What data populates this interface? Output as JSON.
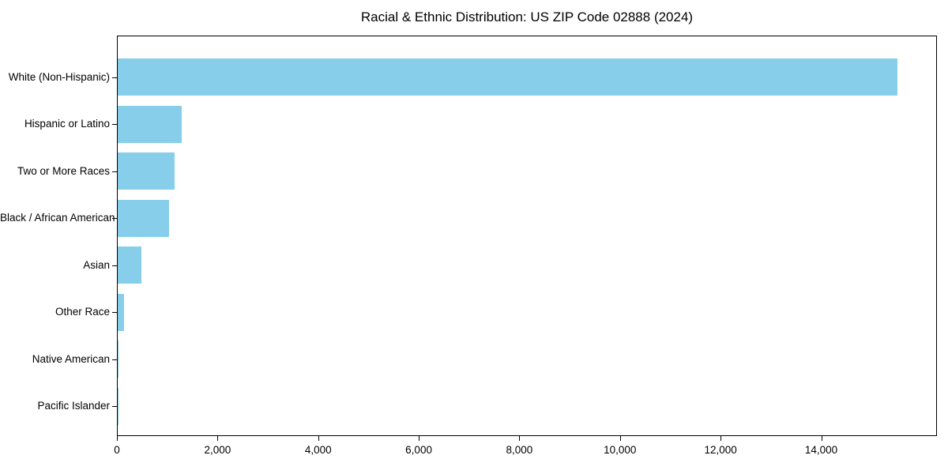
{
  "chart_data": {
    "type": "bar",
    "orientation": "horizontal",
    "title": "Racial & Ethnic Distribution: US ZIP Code 02888 (2024)",
    "categories": [
      "White (Non-Hispanic)",
      "Hispanic or Latino",
      "Two or More Races",
      "Black / African American",
      "Asian",
      "Other Race",
      "Native American",
      "Pacific Islander"
    ],
    "values": [
      15500,
      1270,
      1125,
      1025,
      470,
      120,
      10,
      5
    ],
    "xlabel": "",
    "ylabel": "",
    "xlim": [
      0,
      16300
    ],
    "xticks": [
      0,
      2000,
      4000,
      6000,
      8000,
      10000,
      12000,
      14000
    ],
    "xtick_labels": [
      "0",
      "2,000",
      "4,000",
      "6,000",
      "8,000",
      "10,000",
      "12,000",
      "14,000"
    ],
    "bar_color": "#87CEEB",
    "grid": false,
    "legend_position": "none",
    "background_color": "#ffffff"
  }
}
